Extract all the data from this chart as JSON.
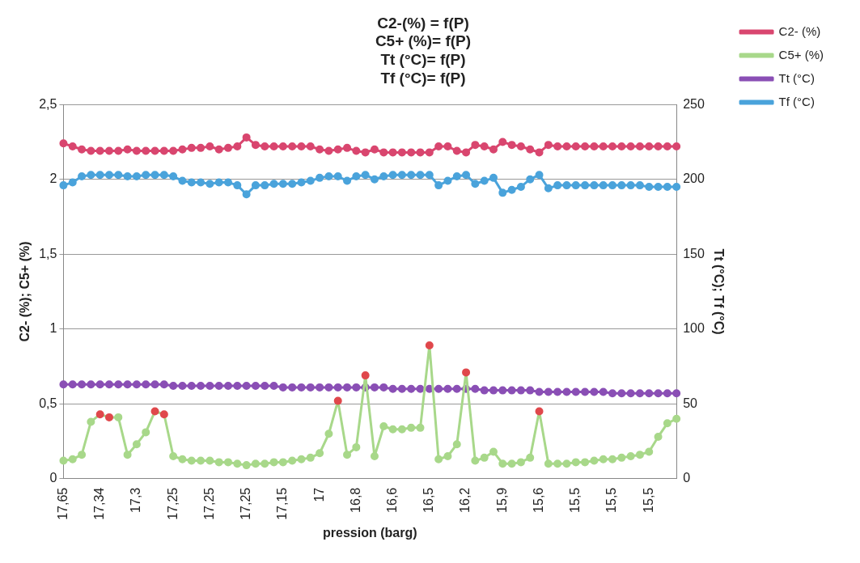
{
  "chart_data": {
    "type": "line",
    "title": "C2-(%) = f(P)\nC5+ (%)= f(P)\nTt (°C)= f(P)\nTf (°C)= f(P)",
    "xlabel": "pression (barg)",
    "ylabel": "C2- (%); C5+ (%)",
    "y2label": "Tt (°C); Tf (°C)",
    "categories": [
      "17,65",
      null,
      null,
      null,
      "17,34",
      null,
      null,
      null,
      "17,3",
      null,
      null,
      null,
      "17,25",
      null,
      null,
      null,
      "17,25",
      null,
      null,
      null,
      "17,25",
      null,
      null,
      null,
      "17,15",
      null,
      null,
      null,
      "17",
      null,
      null,
      null,
      "16,8",
      null,
      null,
      null,
      "16,6",
      null,
      null,
      null,
      "16,5",
      null,
      null,
      null,
      "16,2",
      null,
      null,
      null,
      "15,9",
      null,
      null,
      null,
      "15,6",
      null,
      null,
      null,
      "15,5",
      null,
      null,
      null,
      "15,5",
      null,
      null,
      null,
      "15,5",
      null,
      null,
      null
    ],
    "series": [
      {
        "name": "C2- (%)",
        "color": "#d9466f",
        "values": [
          2.24,
          2.22,
          2.2,
          2.19,
          2.19,
          2.19,
          2.19,
          2.2,
          2.19,
          2.19,
          2.19,
          2.19,
          2.19,
          2.2,
          2.21,
          2.21,
          2.22,
          2.2,
          2.21,
          2.22,
          2.28,
          2.23,
          2.22,
          2.22,
          2.22,
          2.22,
          2.22,
          2.22,
          2.2,
          2.19,
          2.2,
          2.21,
          2.19,
          2.18,
          2.2,
          2.18,
          2.18,
          2.18,
          2.18,
          2.18,
          2.18,
          2.22,
          2.22,
          2.19,
          2.18,
          2.23,
          2.22,
          2.2,
          2.25,
          2.23,
          2.22,
          2.2,
          2.18,
          2.23,
          2.22,
          2.22,
          2.22,
          2.22,
          2.22,
          2.22,
          2.22,
          2.22,
          2.22,
          2.22,
          2.22,
          2.22,
          2.22,
          2.22
        ]
      },
      {
        "name": "C5+ (%)",
        "color": "#a8d88a",
        "colors": [
          "#a8d88a",
          "#a8d88a",
          "#a8d88a",
          "#a8d88a",
          "#e0484c",
          "#e0484c",
          "#a8d88a",
          "#a8d88a",
          "#a8d88a",
          "#a8d88a",
          "#e0484c",
          "#e0484c",
          "#a8d88a",
          "#a8d88a",
          "#a8d88a",
          "#a8d88a",
          "#a8d88a",
          "#a8d88a",
          "#a8d88a",
          "#a8d88a",
          "#a8d88a",
          "#a8d88a",
          "#a8d88a",
          "#a8d88a",
          "#a8d88a",
          "#a8d88a",
          "#a8d88a",
          "#a8d88a",
          "#a8d88a",
          "#a8d88a",
          "#e0484c",
          "#a8d88a",
          "#a8d88a",
          "#e0484c",
          "#a8d88a",
          "#a8d88a",
          "#a8d88a",
          "#a8d88a",
          "#a8d88a",
          "#a8d88a",
          "#e0484c",
          "#a8d88a",
          "#a8d88a",
          "#a8d88a",
          "#e0484c",
          "#a8d88a",
          "#a8d88a",
          "#a8d88a",
          "#a8d88a",
          "#a8d88a",
          "#a8d88a",
          "#a8d88a",
          "#e0484c",
          "#a8d88a",
          "#a8d88a",
          "#a8d88a",
          "#a8d88a",
          "#a8d88a",
          "#a8d88a",
          "#a8d88a",
          "#a8d88a",
          "#a8d88a",
          "#a8d88a",
          "#a8d88a",
          "#a8d88a",
          "#a8d88a",
          "#a8d88a",
          "#a8d88a"
        ],
        "values": [
          0.12,
          0.13,
          0.16,
          0.38,
          0.43,
          0.41,
          0.41,
          0.16,
          0.23,
          0.31,
          0.45,
          0.43,
          0.15,
          0.13,
          0.12,
          0.12,
          0.12,
          0.11,
          0.11,
          0.1,
          0.09,
          0.1,
          0.1,
          0.11,
          0.11,
          0.12,
          0.13,
          0.14,
          0.17,
          0.3,
          0.52,
          0.16,
          0.21,
          0.69,
          0.15,
          0.35,
          0.33,
          0.33,
          0.34,
          0.34,
          0.89,
          0.13,
          0.15,
          0.23,
          0.71,
          0.12,
          0.14,
          0.18,
          0.1,
          0.1,
          0.11,
          0.14,
          0.45,
          0.1,
          0.1,
          0.1,
          0.11,
          0.11,
          0.12,
          0.13,
          0.13,
          0.14,
          0.15,
          0.16,
          0.18,
          0.28,
          0.37,
          0.4
        ]
      },
      {
        "name": "Tt (°C)",
        "color": "#8a4fb5",
        "axis": "y2",
        "values": [
          63,
          63,
          63,
          63,
          63,
          63,
          63,
          63,
          63,
          63,
          63,
          63,
          62,
          62,
          62,
          62,
          62,
          62,
          62,
          62,
          62,
          62,
          62,
          62,
          61,
          61,
          61,
          61,
          61,
          61,
          61,
          61,
          61,
          61,
          61,
          61,
          60,
          60,
          60,
          60,
          60,
          60,
          60,
          60,
          60,
          60,
          59,
          59,
          59,
          59,
          59,
          59,
          58,
          58,
          58,
          58,
          58,
          58,
          58,
          58,
          57,
          57,
          57,
          57,
          57,
          57,
          57,
          57
        ]
      },
      {
        "name": "Tf (°C)",
        "color": "#4aa3db",
        "axis": "y2",
        "values": [
          196,
          198,
          202,
          203,
          203,
          203,
          203,
          202,
          202,
          203,
          203,
          203,
          202,
          199,
          198,
          198,
          197,
          198,
          198,
          196,
          190,
          196,
          196,
          197,
          197,
          197,
          198,
          199,
          201,
          202,
          202,
          199,
          202,
          203,
          200,
          202,
          203,
          203,
          203,
          203,
          203,
          196,
          199,
          202,
          203,
          197,
          199,
          201,
          191,
          193,
          195,
          200,
          203,
          194,
          196,
          196,
          196,
          196,
          196,
          196,
          196,
          196,
          196,
          196,
          195,
          195,
          195,
          195
        ]
      }
    ],
    "ylim": [
      0,
      2.5
    ],
    "yticks": [
      {
        "value": 0,
        "label": "0"
      },
      {
        "value": 0.5,
        "label": "0,5"
      },
      {
        "value": 1,
        "label": "1"
      },
      {
        "value": 1.5,
        "label": "1,5"
      },
      {
        "value": 2,
        "label": "2"
      },
      {
        "value": 2.5,
        "label": "2,5"
      }
    ],
    "y2lim": [
      0,
      250
    ],
    "y2ticks": [
      0,
      50,
      100,
      150,
      200,
      250
    ],
    "grid": "y",
    "legend": "top right",
    "marker": "circle",
    "line_style": "solid"
  }
}
